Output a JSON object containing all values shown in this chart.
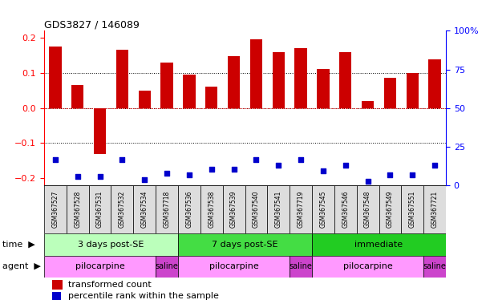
{
  "title": "GDS3827 / 146089",
  "samples": [
    "GSM367527",
    "GSM367528",
    "GSM367531",
    "GSM367532",
    "GSM367534",
    "GSM367718",
    "GSM367536",
    "GSM367538",
    "GSM367539",
    "GSM367540",
    "GSM367541",
    "GSM367719",
    "GSM367545",
    "GSM367546",
    "GSM367548",
    "GSM367549",
    "GSM367551",
    "GSM367721"
  ],
  "bar_values": [
    0.175,
    0.065,
    -0.13,
    0.165,
    0.05,
    0.13,
    0.095,
    0.062,
    0.148,
    0.195,
    0.16,
    0.17,
    0.112,
    0.16,
    0.02,
    0.085,
    0.1,
    0.138
  ],
  "scatter_values": [
    -0.148,
    -0.195,
    -0.195,
    -0.148,
    -0.205,
    -0.185,
    -0.19,
    -0.175,
    -0.175,
    -0.148,
    -0.163,
    -0.148,
    -0.178,
    -0.163,
    -0.208,
    -0.19,
    -0.19,
    -0.163
  ],
  "bar_color": "#cc0000",
  "scatter_color": "#0000cc",
  "ylim": [
    -0.22,
    0.22
  ],
  "y2lim": [
    0,
    100
  ],
  "yticks": [
    -0.2,
    -0.1,
    0.0,
    0.1,
    0.2
  ],
  "y2ticks": [
    0,
    25,
    50,
    75,
    100
  ],
  "y2ticklabels": [
    "0",
    "25",
    "50",
    "75",
    "100%"
  ],
  "dotted_lines": [
    -0.1,
    0.0,
    0.1
  ],
  "time_groups": [
    {
      "label": "3 days post-SE",
      "start": 0,
      "end": 6,
      "color": "#bbffbb"
    },
    {
      "label": "7 days post-SE",
      "start": 6,
      "end": 12,
      "color": "#44dd44"
    },
    {
      "label": "immediate",
      "start": 12,
      "end": 18,
      "color": "#22cc22"
    }
  ],
  "agent_groups": [
    {
      "label": "pilocarpine",
      "start": 0,
      "end": 5,
      "color": "#ff99ff"
    },
    {
      "label": "saline",
      "start": 5,
      "end": 6,
      "color": "#cc44cc"
    },
    {
      "label": "pilocarpine",
      "start": 6,
      "end": 11,
      "color": "#ff99ff"
    },
    {
      "label": "saline",
      "start": 11,
      "end": 12,
      "color": "#cc44cc"
    },
    {
      "label": "pilocarpine",
      "start": 12,
      "end": 17,
      "color": "#ff99ff"
    },
    {
      "label": "saline",
      "start": 17,
      "end": 18,
      "color": "#cc44cc"
    }
  ],
  "label_bg_color": "#dddddd",
  "legend_bar_label": "transformed count",
  "legend_scatter_label": "percentile rank within the sample",
  "bar_width": 0.55,
  "n_samples": 18
}
